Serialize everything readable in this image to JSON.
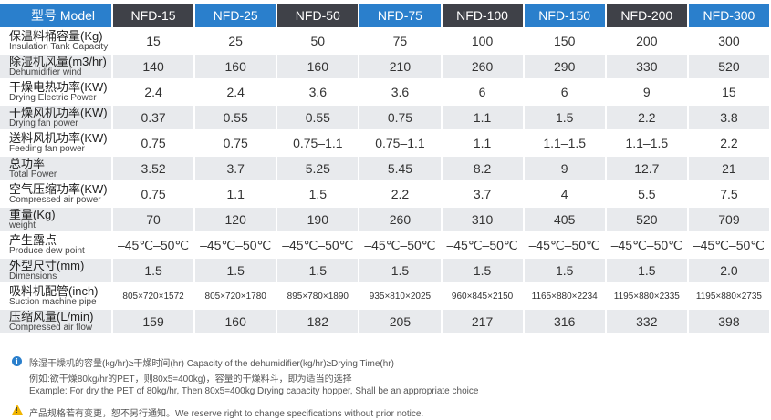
{
  "header": {
    "model_label": "型号 Model",
    "models": [
      "NFD-15",
      "NFD-25",
      "NFD-50",
      "NFD-75",
      "NFD-100",
      "NFD-150",
      "NFD-200",
      "NFD-300"
    ]
  },
  "rows": [
    {
      "zh": "保温料桶容量(Kg)",
      "en": "Insulation Tank Capacity",
      "values": [
        "15",
        "25",
        "50",
        "75",
        "100",
        "150",
        "200",
        "300"
      ]
    },
    {
      "zh": "除湿机风量(m3/hr)",
      "en": "Dehumidifier wind",
      "values": [
        "140",
        "160",
        "160",
        "210",
        "260",
        "290",
        "330",
        "520"
      ]
    },
    {
      "zh": "干燥电热功率(KW)",
      "en": "Drying Electric Power",
      "values": [
        "2.4",
        "2.4",
        "3.6",
        "3.6",
        "6",
        "6",
        "9",
        "15"
      ]
    },
    {
      "zh": "干燥风机功率(KW)",
      "en": "Drying fan power",
      "values": [
        "0.37",
        "0.55",
        "0.55",
        "0.75",
        "1.1",
        "1.5",
        "2.2",
        "3.8"
      ]
    },
    {
      "zh": "送料风机功率(KW)",
      "en": "Feeding fan power",
      "values": [
        "0.75",
        "0.75",
        "0.75–1.1",
        "0.75–1.1",
        "1.1",
        "1.1–1.5",
        "1.1–1.5",
        "2.2"
      ]
    },
    {
      "zh": "总功率",
      "en": "Total Power",
      "values": [
        "3.52",
        "3.7",
        "5.25",
        "5.45",
        "8.2",
        "9",
        "12.7",
        "21"
      ]
    },
    {
      "zh": "空气压缩功率(KW)",
      "en": "Compressed air power",
      "values": [
        "0.75",
        "1.1",
        "1.5",
        "2.2",
        "3.7",
        "4",
        "5.5",
        "7.5"
      ]
    },
    {
      "zh": "重量(Kg)",
      "en": "weight",
      "values": [
        "70",
        "120",
        "190",
        "260",
        "310",
        "405",
        "520",
        "709"
      ]
    },
    {
      "zh": "产生露点",
      "en": "Produce dew point",
      "values": [
        "–45℃–50℃",
        "–45℃–50℃",
        "–45℃–50℃",
        "–45℃–50℃",
        "–45℃–50℃",
        "–45℃–50℃",
        "–45℃–50℃",
        "–45℃–50℃"
      ]
    },
    {
      "zh": "外型尺寸(mm)",
      "en": "Dimensions",
      "values": [
        "1.5",
        "1.5",
        "1.5",
        "1.5",
        "1.5",
        "1.5",
        "1.5",
        "2.0"
      ]
    },
    {
      "zh": "吸料机配管(inch)",
      "en": "Suction machine pipe",
      "small": true,
      "values": [
        "805×720×1572",
        "805×720×1780",
        "895×780×1890",
        "935×810×2025",
        "960×845×2150",
        "1165×880×2234",
        "1195×880×2335",
        "1195×880×2735"
      ]
    },
    {
      "zh": "压缩风量(L/min)",
      "en": "Compressed air flow",
      "values": [
        "159",
        "160",
        "182",
        "205",
        "217",
        "316",
        "332",
        "398"
      ]
    }
  ],
  "notes": {
    "line1": "除湿干燥机的容量(kg/hr)≥干燥时间(hr)   Capacity of the dehumidifier(kg/hr)≥Drying Time(hr)",
    "line2": "例如:欲干燥80kg/hr的PET，则80x5=400kg)，容量的干燥料斗，即为适当的选择",
    "line3": "Example: For dry the PET of 80kg/hr, Then 80x5=400kg Drying capacity hopper, Shall be an appropriate choice",
    "line4": "产品规格若有变更，恕不另行通知。We reserve right to change specifications without prior notice."
  }
}
